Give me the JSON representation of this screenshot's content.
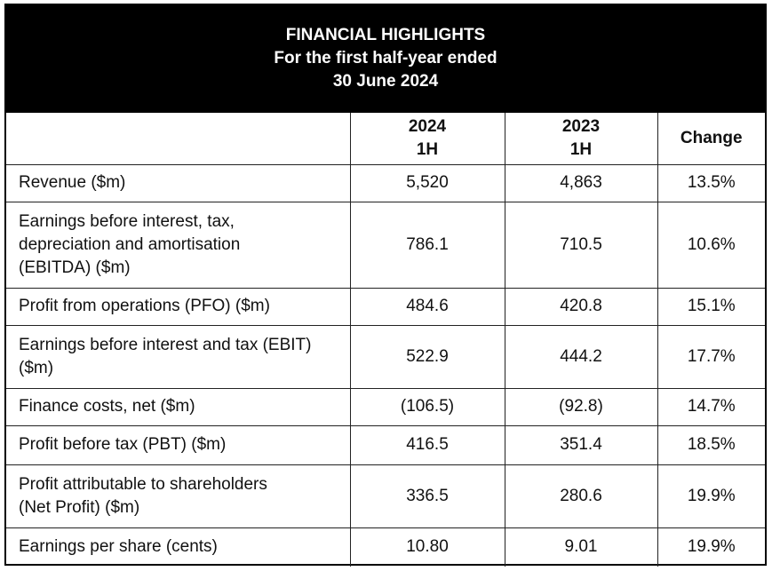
{
  "header": {
    "title": "FINANCIAL HIGHLIGHTS",
    "subtitle_line1": "For the first half-year ended",
    "subtitle_line2": "30 June 2024"
  },
  "columns": {
    "label": "",
    "col_2024": [
      "2024",
      "1H"
    ],
    "col_2023": [
      "2023",
      "1H"
    ],
    "change": "Change"
  },
  "rows": [
    {
      "label": [
        "Revenue ($m)"
      ],
      "v2024": "5,520",
      "v2023": "4,863",
      "change": "13.5%"
    },
    {
      "label": [
        "Earnings before interest, tax,",
        "depreciation and amortisation",
        "(EBITDA) ($m)"
      ],
      "v2024": "786.1",
      "v2023": "710.5",
      "change": "10.6%"
    },
    {
      "label": [
        "Profit from operations (PFO) ($m)"
      ],
      "v2024": "484.6",
      "v2023": "420.8",
      "change": "15.1%"
    },
    {
      "label": [
        "Earnings before interest and tax (EBIT)",
        "($m)"
      ],
      "v2024": "522.9",
      "v2023": "444.2",
      "change": "17.7%"
    },
    {
      "label": [
        "Finance costs, net ($m)"
      ],
      "v2024": "(106.5)",
      "v2023": "(92.8)",
      "change": "14.7%"
    },
    {
      "label": [
        "Profit before tax (PBT) ($m)"
      ],
      "v2024": "416.5",
      "v2023": "351.4",
      "change": "18.5%"
    },
    {
      "label": [
        "Profit attributable to shareholders",
        "(Net Profit) ($m)"
      ],
      "v2024": "336.5",
      "v2023": "280.6",
      "change": "19.9%"
    },
    {
      "label": [
        "Earnings per share (cents)"
      ],
      "v2024": "10.80",
      "v2023": "9.01",
      "change": "19.9%"
    }
  ]
}
